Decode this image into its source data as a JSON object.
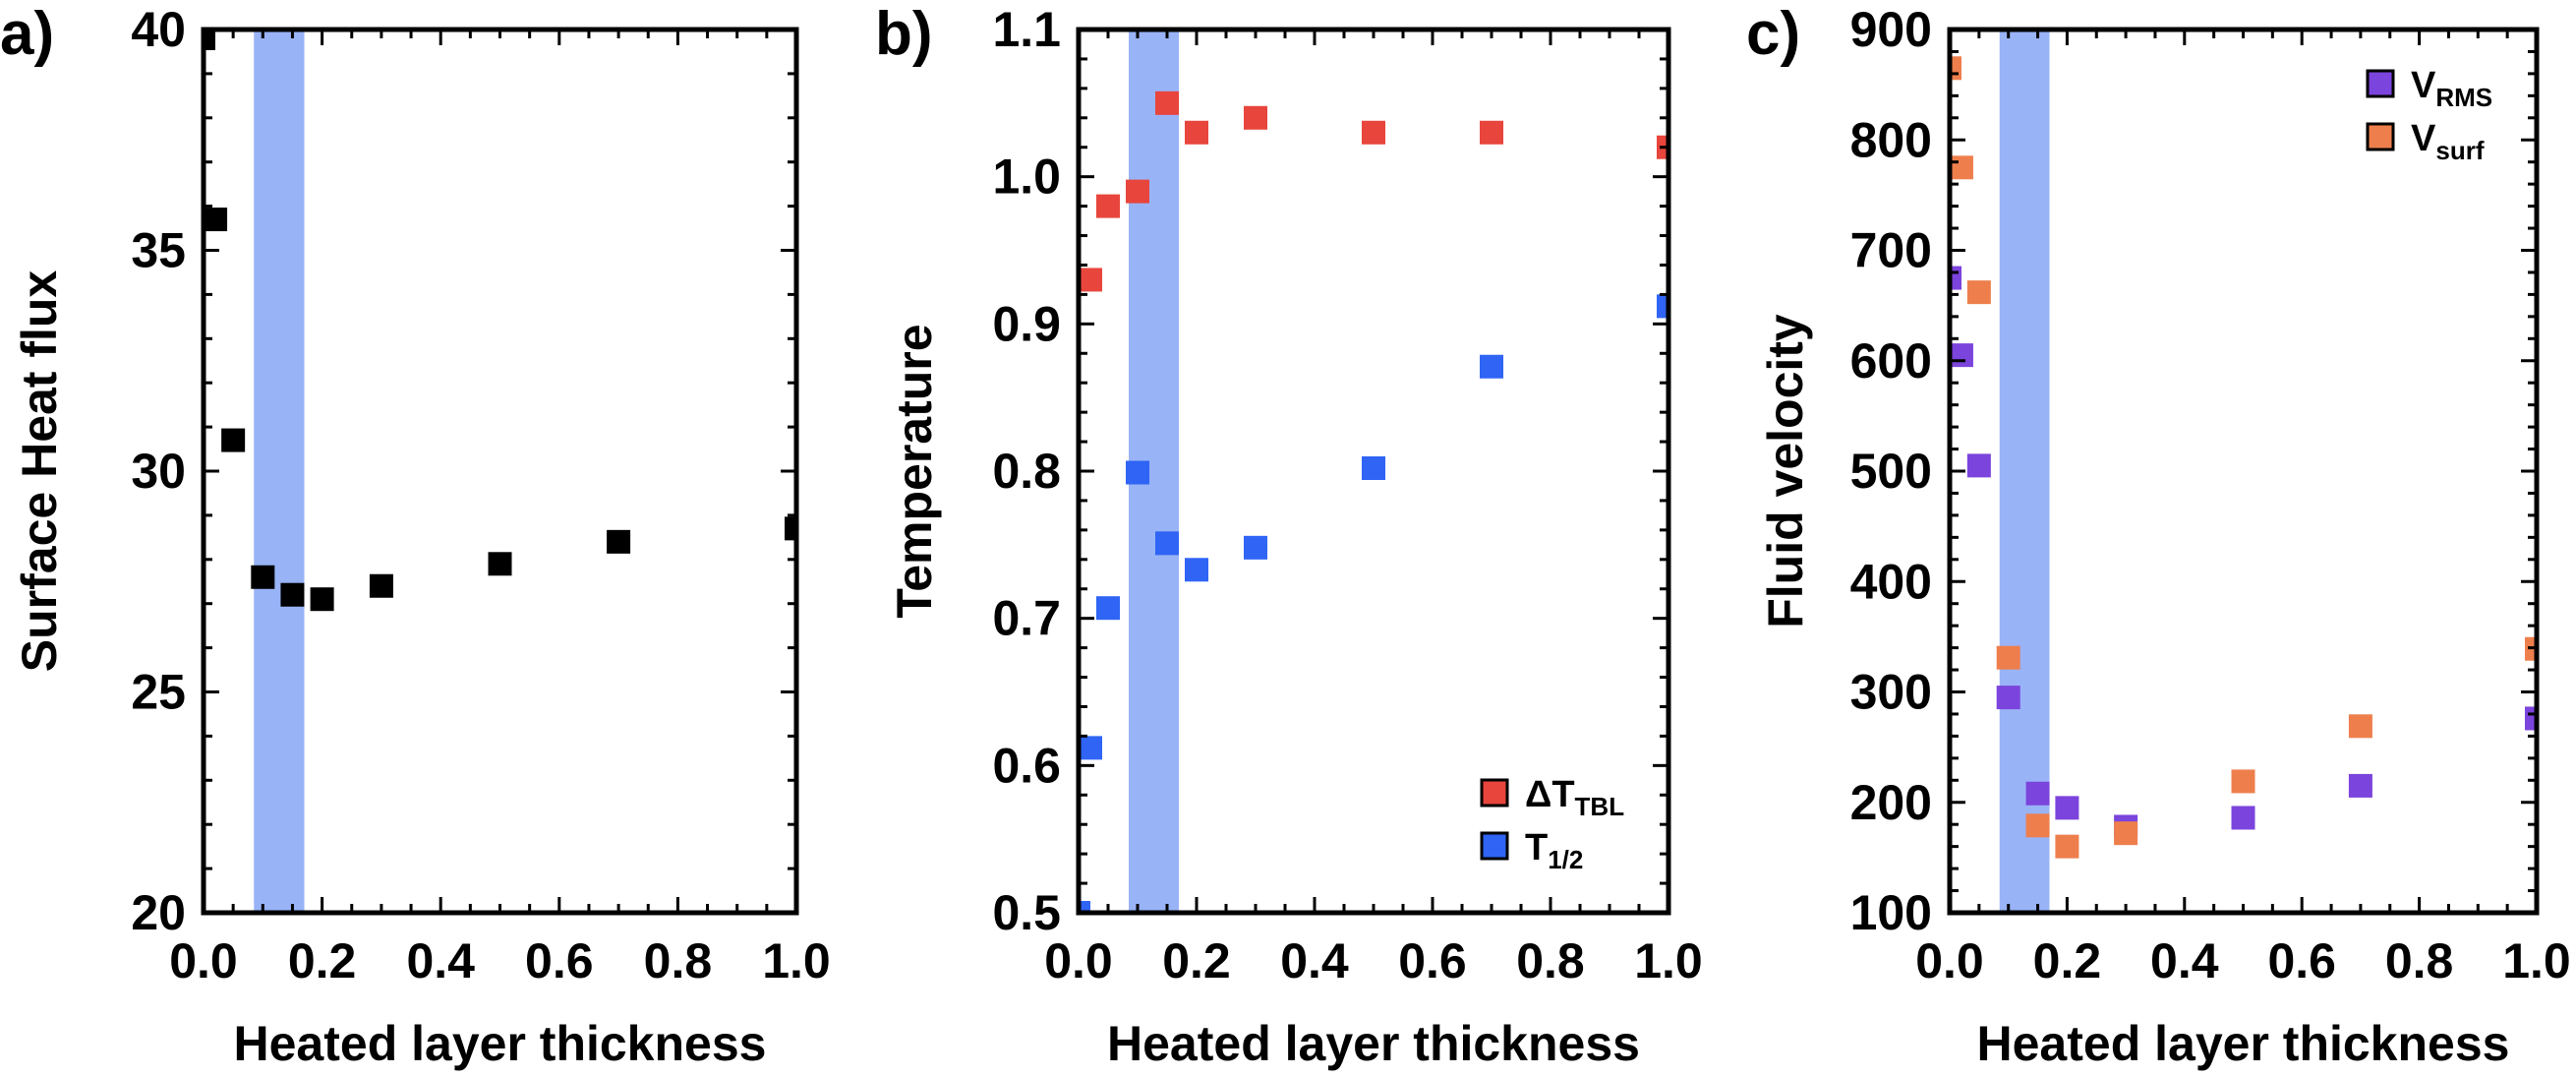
{
  "chart_data": [
    {
      "type": "scatter",
      "panel_label": "a)",
      "xlabel": "Heated layer thickness",
      "ylabel": "Surface Heat flux",
      "xlim": [
        0,
        1.0
      ],
      "ylim": [
        20,
        40
      ],
      "x_ticks": [
        "0.0",
        "0.2",
        "0.4",
        "0.6",
        "0.8",
        "1.0"
      ],
      "y_ticks": [
        "20",
        "25",
        "30",
        "35",
        "40"
      ],
      "highlight_band": {
        "x_start": 0.085,
        "x_end": 0.17,
        "color": "#99b3f7"
      },
      "grid": false,
      "legend": null,
      "series": [
        {
          "color": "#000000",
          "x": [
            0.0,
            0.02,
            0.05,
            0.1,
            0.15,
            0.2,
            0.3,
            0.5,
            0.7,
            1.0
          ],
          "y": [
            39.8,
            35.7,
            30.7,
            27.6,
            27.2,
            27.1,
            27.4,
            27.9,
            28.4,
            28.7
          ]
        }
      ]
    },
    {
      "type": "scatter",
      "panel_label": "b)",
      "xlabel": "Heated layer thickness",
      "ylabel": "Temperature",
      "xlim": [
        0,
        1.0
      ],
      "ylim": [
        0.5,
        1.1
      ],
      "x_ticks": [
        "0.0",
        "0.2",
        "0.4",
        "0.6",
        "0.8",
        "1.0"
      ],
      "y_ticks": [
        "0.5",
        "0.6",
        "0.7",
        "0.8",
        "0.9",
        "1.0",
        "1.1"
      ],
      "highlight_band": {
        "x_start": 0.085,
        "x_end": 0.17,
        "color": "#99b3f7"
      },
      "grid": false,
      "legend": "bottom-right",
      "series": [
        {
          "name": "ΔT",
          "name_sub": "TBL",
          "color": "#e8453c",
          "x": [
            0.02,
            0.05,
            0.1,
            0.15,
            0.2,
            0.3,
            0.5,
            0.7,
            1.0
          ],
          "y": [
            0.93,
            0.98,
            0.99,
            1.05,
            1.03,
            1.04,
            1.03,
            1.03,
            1.02
          ]
        },
        {
          "name": "T",
          "name_sub": "1/2",
          "color": "#2f64f5",
          "x": [
            0.0,
            0.02,
            0.05,
            0.1,
            0.15,
            0.2,
            0.3,
            0.5,
            0.7,
            1.0
          ],
          "y": [
            0.5,
            0.612,
            0.707,
            0.799,
            0.751,
            0.733,
            0.748,
            0.802,
            0.871,
            0.912
          ]
        }
      ]
    },
    {
      "type": "scatter",
      "panel_label": "c)",
      "xlabel": "Heated layer thickness",
      "ylabel": "Fluid velocity",
      "xlim": [
        0,
        1.0
      ],
      "ylim": [
        100,
        900
      ],
      "x_ticks": [
        "0.0",
        "0.2",
        "0.4",
        "0.6",
        "0.8",
        "1.0"
      ],
      "y_ticks": [
        "100",
        "200",
        "300",
        "400",
        "500",
        "600",
        "700",
        "800",
        "900"
      ],
      "highlight_band": {
        "x_start": 0.085,
        "x_end": 0.17,
        "color": "#99b3f7"
      },
      "grid": false,
      "legend": "top-right",
      "series": [
        {
          "name": "V",
          "name_sub": "RMS",
          "color": "#7b44dc",
          "x": [
            0.0,
            0.02,
            0.05,
            0.1,
            0.15,
            0.2,
            0.3,
            0.5,
            0.7,
            1.0
          ],
          "y": [
            675,
            605,
            505,
            295,
            208,
            195,
            178,
            186,
            215,
            276
          ]
        },
        {
          "name": "V",
          "name_sub": "surf",
          "color": "#ee7f4d",
          "x": [
            0.0,
            0.02,
            0.05,
            0.1,
            0.15,
            0.2,
            0.3,
            0.5,
            0.7,
            1.0
          ],
          "y": [
            865,
            775,
            662,
            331,
            179,
            160,
            172,
            219,
            269,
            339
          ]
        }
      ]
    }
  ]
}
